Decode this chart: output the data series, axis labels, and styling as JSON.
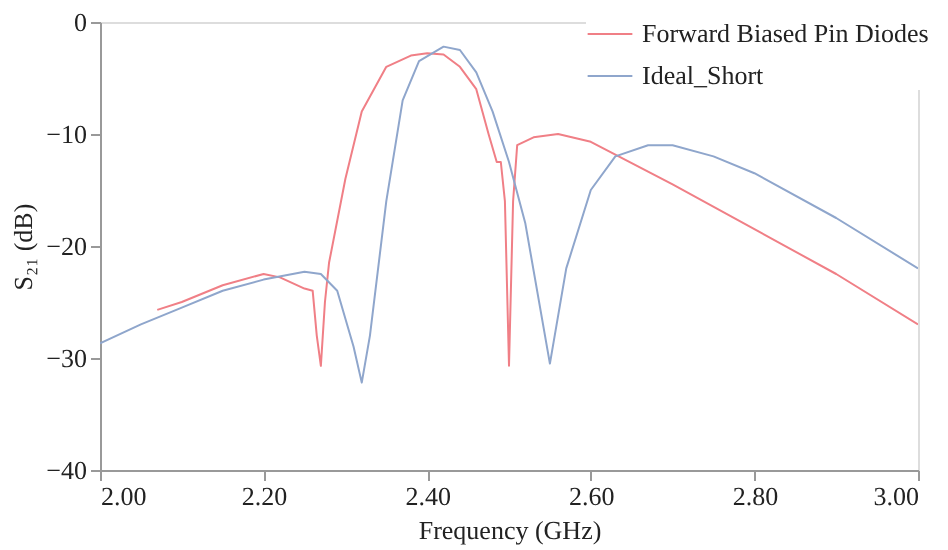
{
  "chart_data": {
    "type": "line",
    "xlabel": "Frequency (GHz)",
    "ylabel": "S₂₁ (dB)",
    "xlim": [
      2.0,
      3.0
    ],
    "ylim": [
      -40,
      0
    ],
    "xticks": [
      {
        "value": 2.0,
        "label": "2.00"
      },
      {
        "value": 2.2,
        "label": "2.20"
      },
      {
        "value": 2.4,
        "label": "2.40"
      },
      {
        "value": 2.6,
        "label": "2.60"
      },
      {
        "value": 2.8,
        "label": "2.80"
      },
      {
        "value": 3.0,
        "label": "3.00"
      }
    ],
    "yticks": [
      0,
      -10,
      -20,
      -30,
      -40
    ],
    "grid": false,
    "legend": "top right",
    "line_style": "solid",
    "marker": "none",
    "series": [
      {
        "name": "Forward Biased Pin Diodes",
        "color": "#f07f86",
        "x": [
          2.07,
          2.1,
          2.15,
          2.2,
          2.22,
          2.25,
          2.26,
          2.265,
          2.27,
          2.275,
          2.28,
          2.3,
          2.32,
          2.35,
          2.38,
          2.4,
          2.42,
          2.44,
          2.46,
          2.475,
          2.485,
          2.49,
          2.495,
          2.5,
          2.505,
          2.51,
          2.53,
          2.56,
          2.6,
          2.7,
          2.8,
          2.9,
          3.0
        ],
        "values": [
          -25.7,
          -25,
          -23.5,
          -22.5,
          -22.8,
          -23.8,
          -24,
          -28,
          -30.7,
          -25,
          -21.5,
          -14,
          -8,
          -4,
          -3,
          -2.8,
          -2.9,
          -4,
          -6,
          -10,
          -12.5,
          -12.5,
          -16,
          -30.7,
          -16,
          -11,
          -10.3,
          -10,
          -10.7,
          -14.5,
          -18.5,
          -22.5,
          -27
        ]
      },
      {
        "name": "Ideal_Short",
        "color": "#8fa6cc",
        "x": [
          2.0,
          2.05,
          2.1,
          2.15,
          2.2,
          2.25,
          2.27,
          2.29,
          2.31,
          2.32,
          2.33,
          2.35,
          2.37,
          2.39,
          2.42,
          2.44,
          2.46,
          2.48,
          2.5,
          2.52,
          2.55,
          2.57,
          2.6,
          2.63,
          2.67,
          2.7,
          2.75,
          2.8,
          2.9,
          3.0
        ],
        "values": [
          -28.7,
          -27,
          -25.5,
          -24,
          -23,
          -22.3,
          -22.5,
          -24,
          -29,
          -32.2,
          -28,
          -16,
          -7,
          -3.5,
          -2.2,
          -2.5,
          -4.5,
          -8,
          -12.5,
          -18,
          -30.5,
          -22,
          -15,
          -12,
          -11,
          -11,
          -12,
          -13.5,
          -17.5,
          -22
        ]
      }
    ]
  }
}
